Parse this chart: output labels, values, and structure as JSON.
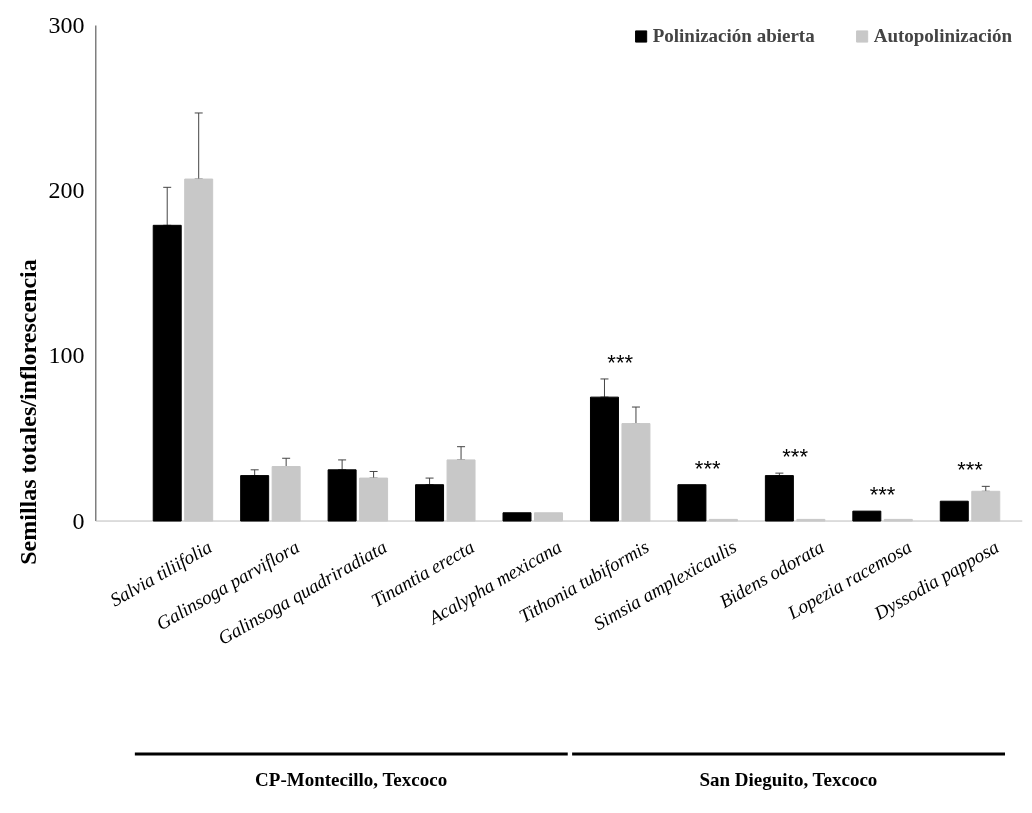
{
  "chart_data": {
    "type": "bar",
    "ylabel": "Semillas totales/inflorescencia",
    "categories": [
      "Salvia tiliifolia",
      "Galinsoga parviflora",
      "Galinsoga quadriradiata",
      "Tinantia erecta",
      "Acalypha mexicana",
      "Tithonia tubiformis",
      "Simsia amplexicaulis",
      "Bidens odorata",
      "Lopezia racemosa",
      "Dyssodia papposa"
    ],
    "series": [
      {
        "name": "Polinización abierta",
        "color": "#000000",
        "values": [
          179,
          27.5,
          31,
          22,
          5,
          75,
          22,
          27.5,
          6,
          12
        ],
        "errors": [
          [
            179,
            202
          ],
          [
            27.5,
            31
          ],
          [
            31,
            37
          ],
          [
            22,
            26
          ],
          null,
          [
            75,
            86
          ],
          null,
          [
            27.5,
            29
          ],
          null,
          null
        ]
      },
      {
        "name": "Autopolinización",
        "color": "#c8c8c8",
        "values": [
          207,
          33,
          26,
          37,
          5,
          59,
          1,
          1,
          1,
          18
        ],
        "errors": [
          [
            207,
            247
          ],
          [
            33,
            38
          ],
          [
            26,
            30
          ],
          [
            37,
            45
          ],
          null,
          [
            59,
            69
          ],
          null,
          null,
          null,
          [
            18,
            21
          ]
        ]
      }
    ],
    "ylim": [
      0,
      300
    ],
    "yticks": [
      0,
      100,
      200,
      300
    ],
    "grid": false,
    "legend": "top right",
    "annotations": [
      "***",
      "***",
      "***",
      "***",
      "***",
      "CP-Montecillo, Texcoco",
      "San Dieguito, Texcoco"
    ]
  }
}
